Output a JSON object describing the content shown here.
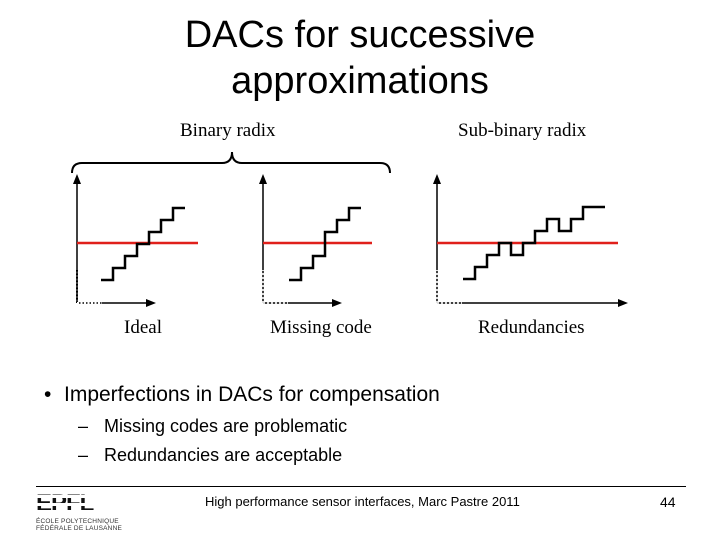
{
  "slide": {
    "title_line1": "DACs for successive",
    "title_line2": "approximations"
  },
  "figure": {
    "group_label_binary": "Binary radix",
    "group_label_sub_binary": "Sub-binary radix",
    "panel_labels": [
      "Ideal",
      "Missing code",
      "Redundancies"
    ],
    "colors": {
      "steps": "#000000",
      "threshold": "#e0201b"
    }
  },
  "bullets": {
    "main": "Imperfections in DACs for compensation",
    "sub": [
      "Missing codes are problematic",
      "Redundancies are acceptable"
    ]
  },
  "footer": {
    "text": "High performance sensor interfaces, Marc Pastre 2011",
    "page_number": "44",
    "logo_text": "EPFL",
    "logo_small_line1": "ÉCOLE POLYTECHNIQUE",
    "logo_small_line2": "FÉDÉRALE DE LAUSANNE"
  }
}
